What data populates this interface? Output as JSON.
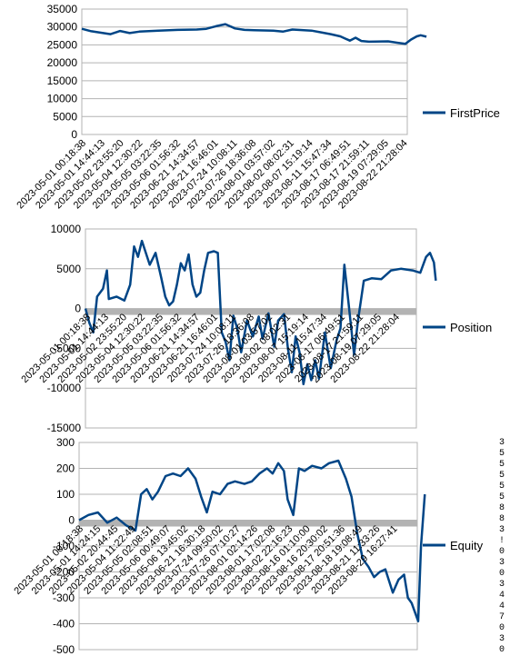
{
  "chart_data": [
    {
      "type": "line",
      "title": "",
      "series": [
        {
          "name": "FirstPrice",
          "color": "#004586"
        }
      ],
      "ylim": [
        0,
        35000
      ],
      "yticks": [
        0,
        5000,
        10000,
        15000,
        20000,
        25000,
        30000,
        35000
      ],
      "zero_band": false,
      "xticklabels": [
        "2023-05-01 00:18:38",
        "2023-05-01 14:44:13",
        "2023-05-02 23:55:20",
        "2023-05-04 12:30:22",
        "2023-05-05 03:22:35",
        "2023-05-06 01:56:32",
        "2023-06-21 14:34:57",
        "2023-06-21 16:46:01",
        "2023-07-24 10:08:11",
        "2023-07-26 18:36:08",
        "2023-08-01 03:57:02",
        "2023-08-02 08:02:31",
        "2023-08-07 15:19:14",
        "2023-08-11 15:47:34",
        "2023-08-17 06:49:51",
        "2023-08-17 21:59:11",
        "2023-08-19 07:29:05",
        "2023-08-22 21:28:04"
      ],
      "points": [
        [
          0,
          29500
        ],
        [
          0.5,
          28800
        ],
        [
          1,
          28400
        ],
        [
          1.5,
          28000
        ],
        [
          2,
          28900
        ],
        [
          2.5,
          28300
        ],
        [
          3,
          28700
        ],
        [
          4,
          29000
        ],
        [
          5,
          29200
        ],
        [
          6,
          29300
        ],
        [
          6.5,
          29500
        ],
        [
          7,
          30200
        ],
        [
          7.5,
          30800
        ],
        [
          8,
          29600
        ],
        [
          8.5,
          29200
        ],
        [
          9,
          29100
        ],
        [
          10,
          29000
        ],
        [
          10.5,
          28700
        ],
        [
          11,
          29300
        ],
        [
          12,
          29000
        ],
        [
          12.5,
          28500
        ],
        [
          13,
          28000
        ],
        [
          13.5,
          27400
        ],
        [
          14,
          26200
        ],
        [
          14.3,
          27000
        ],
        [
          14.6,
          26100
        ],
        [
          15,
          25900
        ],
        [
          16,
          26000
        ],
        [
          16.5,
          25600
        ],
        [
          16.9,
          25300
        ],
        [
          17.2,
          26500
        ],
        [
          17.5,
          27400
        ],
        [
          17.7,
          27700
        ],
        [
          18,
          27300
        ]
      ]
    },
    {
      "type": "line",
      "title": "",
      "series": [
        {
          "name": "Position",
          "color": "#004586"
        }
      ],
      "ylim": [
        -15000,
        10000
      ],
      "yticks": [
        -15000,
        -10000,
        -5000,
        0,
        5000,
        10000
      ],
      "zero_band": true,
      "xticklabels": [
        "2023-05-01 00:18:38",
        "2023-05-01 14:44:13",
        "2023-05-02 23:55:20",
        "2023-05-04 12:30:22",
        "2023-05-05 03:22:35",
        "2023-05-06 01:56:32",
        "2023-06-21 14:34:57",
        "2023-06-21 16:46:01",
        "2023-07-24 10:08:11",
        "2023-07-26 18:36:08",
        "2023-08-01 03:57:02",
        "2023-08-02 08:02:31",
        "2023-08-07 15:19:14",
        "2023-08-11 15:47:34",
        "2023-08-17 06:49:51",
        "2023-08-17 21:59:11",
        "2023-08-19 07:29:05",
        "2023-08-22 21:28:04"
      ],
      "points": [
        [
          0,
          0
        ],
        [
          0.2,
          -1800
        ],
        [
          0.4,
          -3000
        ],
        [
          0.6,
          1500
        ],
        [
          0.9,
          2500
        ],
        [
          1.1,
          4800
        ],
        [
          1.2,
          1200
        ],
        [
          1.6,
          1500
        ],
        [
          2,
          1000
        ],
        [
          2.3,
          3000
        ],
        [
          2.5,
          7800
        ],
        [
          2.7,
          6500
        ],
        [
          2.9,
          8500
        ],
        [
          3.1,
          7000
        ],
        [
          3.3,
          5500
        ],
        [
          3.6,
          7000
        ],
        [
          3.9,
          3800
        ],
        [
          4.1,
          1500
        ],
        [
          4.3,
          400
        ],
        [
          4.5,
          900
        ],
        [
          4.7,
          3000
        ],
        [
          4.9,
          5700
        ],
        [
          5.1,
          4800
        ],
        [
          5.3,
          6800
        ],
        [
          5.5,
          3000
        ],
        [
          5.7,
          1500
        ],
        [
          5.9,
          2000
        ],
        [
          6.1,
          4800
        ],
        [
          6.3,
          7000
        ],
        [
          6.6,
          7200
        ],
        [
          6.8,
          7000
        ],
        [
          7.0,
          -3000
        ],
        [
          7.2,
          -4200
        ],
        [
          7.4,
          -6500
        ],
        [
          7.6,
          -900
        ],
        [
          7.8,
          -2500
        ],
        [
          8.0,
          -5500
        ],
        [
          8.3,
          -1500
        ],
        [
          8.6,
          -3500
        ],
        [
          8.9,
          -1000
        ],
        [
          9.1,
          -3800
        ],
        [
          9.4,
          -600
        ],
        [
          9.7,
          -4800
        ],
        [
          9.9,
          -1500
        ],
        [
          10.2,
          -700
        ],
        [
          10.4,
          -5000
        ],
        [
          10.6,
          -8000
        ],
        [
          10.8,
          -3500
        ],
        [
          11.0,
          -5500
        ],
        [
          11.2,
          -9500
        ],
        [
          11.4,
          -7000
        ],
        [
          11.6,
          -9000
        ],
        [
          11.8,
          -6500
        ],
        [
          12.0,
          -8800
        ],
        [
          12.3,
          -3000
        ],
        [
          12.6,
          -7500
        ],
        [
          12.9,
          -4000
        ],
        [
          13.1,
          -2500
        ],
        [
          13.3,
          5500
        ],
        [
          13.5,
          1000
        ],
        [
          13.8,
          -5800
        ],
        [
          14.0,
          -1500
        ],
        [
          14.3,
          3500
        ],
        [
          14.7,
          3800
        ],
        [
          15.2,
          3700
        ],
        [
          15.7,
          4800
        ],
        [
          16.2,
          5000
        ],
        [
          16.8,
          4800
        ],
        [
          17.2,
          4500
        ],
        [
          17.5,
          6500
        ],
        [
          17.7,
          7000
        ],
        [
          17.9,
          5800
        ],
        [
          18,
          3500
        ]
      ]
    },
    {
      "type": "line",
      "title": "",
      "series": [
        {
          "name": "Equity",
          "color": "#004586"
        }
      ],
      "ylim": [
        -500,
        300
      ],
      "yticks": [
        -500,
        -400,
        -300,
        -200,
        -100,
        0,
        100,
        200,
        300
      ],
      "zero_band": true,
      "xticklabels": [
        "2023-05-01 00:18:38",
        "2023-05-01 14:24:15",
        "2023-05-02 20:44:45",
        "2023-05-04 11:22:49",
        "2023-05-05 02:08:51",
        "2023-05-06 00:49:07",
        "2023-05-06 13:45:02",
        "2023-06-21 16:30:18",
        "2023-07-24 09:50:02",
        "2023-07-26 07:10:27",
        "2023-08-01 02:14:26",
        "2023-08-01 17:02:08",
        "2023-08-02 22:16:23",
        "2023-08-16 01:10:00",
        "2023-08-16 20:30:02",
        "2023-08-17 20:51:36",
        "2023-08-18 19:08:49",
        "2023-08-21 11:33:26",
        "2023-08-29 16:27:41"
      ],
      "points": [
        [
          0,
          0
        ],
        [
          0.5,
          20
        ],
        [
          1,
          30
        ],
        [
          1.5,
          -10
        ],
        [
          2,
          10
        ],
        [
          2.5,
          -20
        ],
        [
          3,
          -40
        ],
        [
          3.3,
          100
        ],
        [
          3.6,
          120
        ],
        [
          3.9,
          80
        ],
        [
          4.2,
          110
        ],
        [
          4.6,
          170
        ],
        [
          5,
          180
        ],
        [
          5.4,
          170
        ],
        [
          5.8,
          200
        ],
        [
          6.2,
          160
        ],
        [
          6.5,
          90
        ],
        [
          6.8,
          30
        ],
        [
          7.1,
          110
        ],
        [
          7.5,
          100
        ],
        [
          7.9,
          140
        ],
        [
          8.3,
          150
        ],
        [
          8.8,
          140
        ],
        [
          9.2,
          150
        ],
        [
          9.6,
          180
        ],
        [
          10,
          200
        ],
        [
          10.3,
          180
        ],
        [
          10.6,
          220
        ],
        [
          10.9,
          190
        ],
        [
          11.1,
          80
        ],
        [
          11.4,
          20
        ],
        [
          11.7,
          200
        ],
        [
          12,
          190
        ],
        [
          12.4,
          210
        ],
        [
          12.9,
          200
        ],
        [
          13.3,
          220
        ],
        [
          13.8,
          230
        ],
        [
          14.2,
          160
        ],
        [
          14.5,
          90
        ],
        [
          14.8,
          -50
        ],
        [
          15.1,
          -150
        ],
        [
          15.4,
          -180
        ],
        [
          15.7,
          -220
        ],
        [
          16,
          -200
        ],
        [
          16.3,
          -190
        ],
        [
          16.7,
          -280
        ],
        [
          17,
          -230
        ],
        [
          17.3,
          -210
        ],
        [
          17.5,
          -300
        ],
        [
          17.7,
          -320
        ],
        [
          17.9,
          -360
        ],
        [
          18.05,
          -390
        ],
        [
          18.2,
          -100
        ],
        [
          18.4,
          100
        ]
      ]
    }
  ],
  "edge_marks": [
    "3",
    "5",
    "5",
    "5",
    "5",
    "5",
    "8",
    "8",
    "3",
    "!",
    "0",
    "3",
    "0",
    "3",
    "4",
    "4",
    "7",
    "0",
    "3",
    "0"
  ]
}
